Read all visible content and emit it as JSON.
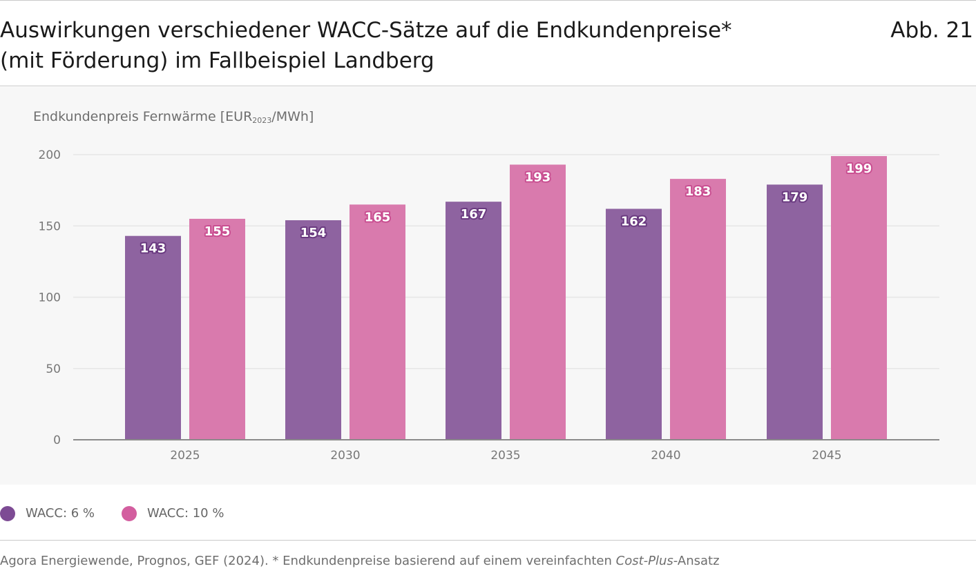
{
  "header": {
    "title_line1": "Auswirkungen verschiedener WACC-Sätze auf die Endkundenpreise*",
    "title_line2": "(mit Förderung) im Fallbeispiel Landberg",
    "figure_number": "Abb. 21"
  },
  "chart_data": {
    "type": "bar",
    "title": "Auswirkungen verschiedener WACC-Sätze auf die Endkundenpreise* (mit Förderung) im Fallbeispiel Landberg",
    "ylabel": {
      "text": "Endkundenpreis Fernwärme [EUR",
      "sub": "2023",
      "suffix": "/MWh]"
    },
    "xlabel": "",
    "categories": [
      "2025",
      "2030",
      "2035",
      "2040",
      "2045"
    ],
    "series": [
      {
        "name": "WACC: 6 %",
        "color": "#8e63a0",
        "values": [
          143,
          154,
          167,
          162,
          179
        ]
      },
      {
        "name": "WACC: 10 %",
        "color": "#d97aad",
        "values": [
          155,
          165,
          193,
          183,
          199
        ]
      }
    ],
    "ylim": [
      0,
      200
    ],
    "yticks": [
      "0",
      "50",
      "100",
      "150",
      "200"
    ],
    "grid": true,
    "legend_position": "bottom-left"
  },
  "legend": {
    "items": [
      {
        "label": "WACC: 6 %",
        "color": "#7d4b94"
      },
      {
        "label": "WACC: 10 %",
        "color": "#d35e9f"
      }
    ]
  },
  "footer": {
    "source_prefix": "Agora Energiewende, Prognos, GEF (2024). * Endkundenpreise basierend auf einem vereinfachten ",
    "source_italic": "Cost-Plus",
    "source_suffix": "-Ansatz"
  }
}
